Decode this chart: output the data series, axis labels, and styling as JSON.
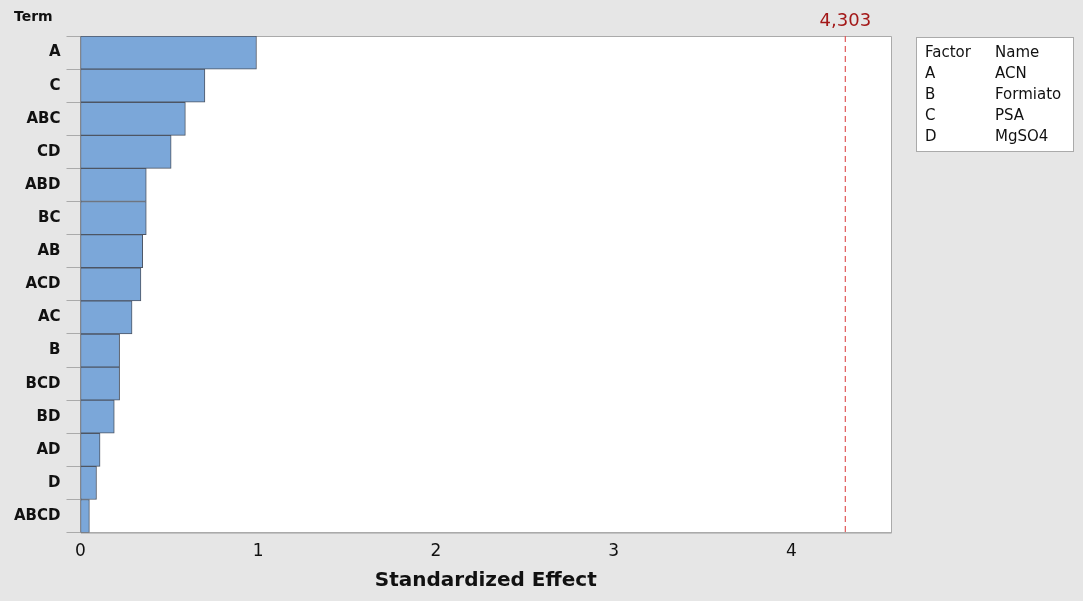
{
  "chart_data": {
    "type": "bar",
    "orientation": "horizontal",
    "ylabel": "Term",
    "xlabel": "Standardized Effect",
    "categories": [
      "A",
      "C",
      "ABC",
      "CD",
      "ABD",
      "BC",
      "AB",
      "ACD",
      "AC",
      "B",
      "BCD",
      "BD",
      "AD",
      "D",
      "ABCD"
    ],
    "values": [
      0.99,
      0.7,
      0.59,
      0.51,
      0.37,
      0.37,
      0.35,
      0.34,
      0.29,
      0.22,
      0.22,
      0.19,
      0.11,
      0.09,
      0.05
    ],
    "color": "#7ba7d9",
    "xlim": [
      0,
      4.56
    ],
    "xticks": [
      0,
      1,
      2,
      3,
      4
    ],
    "grid": false,
    "legend": false,
    "ref_lines": [
      {
        "axis": "x",
        "value": 4.303,
        "label": "4,303",
        "color": "#e05a5a",
        "line_style": "dashed"
      }
    ],
    "annotations": [
      "Factor",
      "Name",
      "A",
      "ACN",
      "B",
      "Formiato",
      "C",
      "PSA",
      "D",
      "MgSO4"
    ]
  }
}
